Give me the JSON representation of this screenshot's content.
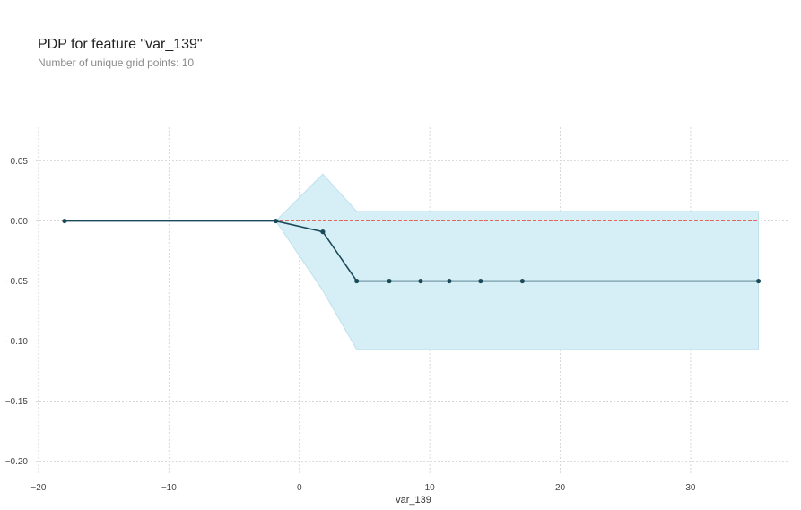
{
  "chart_data": {
    "type": "line",
    "title": "PDP for feature \"var_139\"",
    "subtitle": "Number of unique grid points: 10",
    "xlabel": "var_139",
    "ylabel": "",
    "xlim": [
      -20.2,
      37.5
    ],
    "ylim": [
      -0.21,
      0.078
    ],
    "xticks": [
      -20,
      -10,
      0,
      10,
      20,
      30
    ],
    "yticks": [
      0.05,
      0.0,
      -0.05,
      -0.1,
      -0.15,
      -0.2
    ],
    "xtick_labels": [
      "−20",
      "−10",
      "0",
      "10",
      "20",
      "30"
    ],
    "ytick_labels": [
      "0.05",
      "0.00",
      "−0.05",
      "−0.10",
      "−0.15",
      "−0.20"
    ],
    "grid": true,
    "series": [
      {
        "x": [
          -18.0,
          -1.8,
          1.8,
          4.4,
          6.9,
          9.3,
          11.5,
          13.9,
          17.1,
          35.2
        ],
        "values": [
          0.0,
          0.0,
          -0.009,
          -0.05,
          -0.05,
          -0.05,
          -0.05,
          -0.05,
          -0.05,
          -0.05
        ],
        "upper": [
          0.0,
          0.0,
          0.039,
          0.008,
          0.008,
          0.008,
          0.008,
          0.008,
          0.008,
          0.008
        ],
        "lower": [
          0.0,
          0.0,
          -0.058,
          -0.107,
          -0.107,
          -0.107,
          -0.107,
          -0.107,
          -0.107,
          -0.107
        ]
      }
    ],
    "reference_line": 0.0,
    "colors": {
      "line": "#1a4a5a",
      "band": "#d6eef6",
      "band_edge": "#bfe0ec",
      "reference": "#e06a55",
      "grid": "#cfcfcf"
    }
  }
}
